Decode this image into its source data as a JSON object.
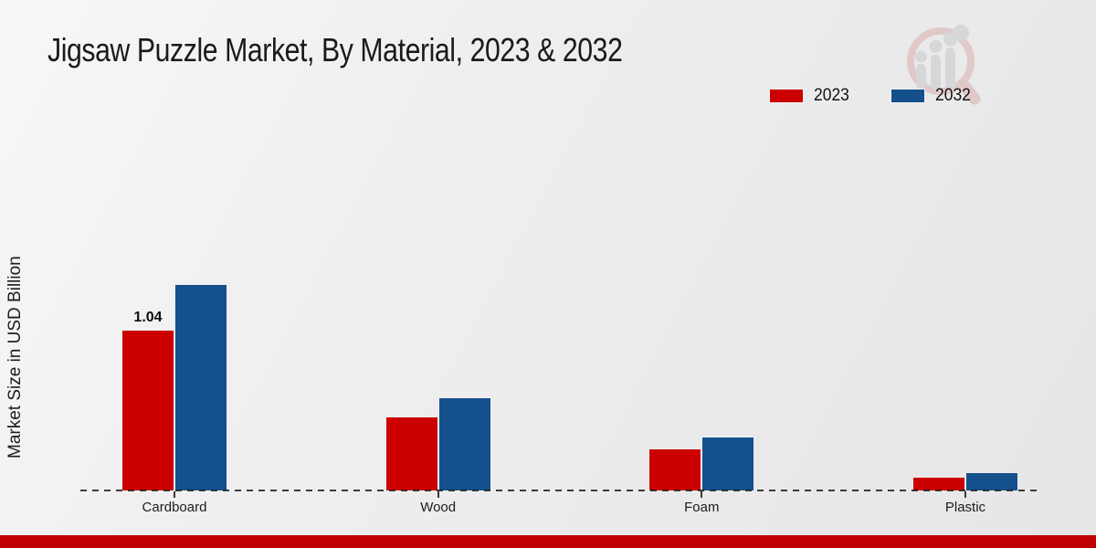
{
  "chart_data": {
    "type": "bar",
    "title": "Jigsaw Puzzle Market, By Material, 2023 & 2032",
    "xlabel": "",
    "ylabel": "Market Size in USD Billion",
    "categories": [
      "Cardboard",
      "Wood",
      "Foam",
      "Plastic"
    ],
    "series": [
      {
        "name": "2023",
        "color": "#cc0000",
        "values": [
          1.04,
          0.48,
          0.27,
          0.09
        ],
        "labels": [
          "1.04",
          "",
          "",
          ""
        ]
      },
      {
        "name": "2032",
        "color": "#14508c",
        "values": [
          1.33,
          0.6,
          0.35,
          0.12
        ],
        "labels": [
          "",
          "",
          "",
          ""
        ]
      }
    ],
    "ylim": [
      0,
      1.45
    ],
    "grid": false,
    "legend_position": "top-right",
    "baseline_style": "dashed"
  },
  "colors": {
    "footer_band": "#c00000",
    "bar_2023": "#cc0000",
    "bar_2032": "#14508c",
    "baseline": "#232323"
  },
  "watermark": {
    "name": "magnifier-growth-chart-logo"
  }
}
